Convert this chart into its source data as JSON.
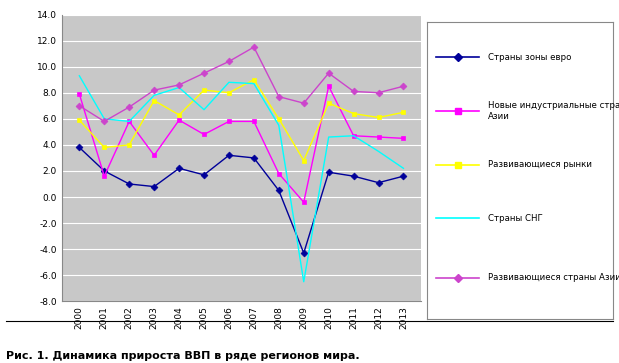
{
  "years": [
    2000,
    2001,
    2002,
    2003,
    2004,
    2005,
    2006,
    2007,
    2008,
    2009,
    2010,
    2011,
    2012,
    2013
  ],
  "series": {
    "Страны зоны евро": [
      3.8,
      2.0,
      1.0,
      0.8,
      2.2,
      1.7,
      3.2,
      3.0,
      0.5,
      -4.3,
      1.9,
      1.6,
      1.1,
      1.6
    ],
    "Новые индустриальные страны Азии": [
      7.9,
      1.6,
      5.8,
      3.2,
      5.9,
      4.8,
      5.8,
      5.8,
      1.8,
      -0.4,
      8.5,
      4.7,
      4.6,
      4.5
    ],
    "Развивающиеся рынки": [
      5.9,
      3.8,
      4.0,
      7.4,
      6.3,
      8.2,
      8.0,
      9.0,
      6.0,
      2.8,
      7.2,
      6.4,
      6.1,
      6.5
    ],
    "Страны СНГ": [
      9.3,
      6.0,
      5.8,
      7.8,
      8.4,
      6.7,
      8.8,
      8.7,
      5.5,
      -6.5,
      4.6,
      4.7,
      3.5,
      2.2
    ],
    "Развивающиеся страны Азии": [
      7.0,
      5.8,
      6.9,
      8.2,
      8.6,
      9.5,
      10.4,
      11.5,
      7.7,
      7.2,
      9.5,
      8.1,
      8.0,
      8.5
    ]
  },
  "colors": {
    "Страны зоны евро": "#000099",
    "Новые индустриальные страны Азии": "#FF00FF",
    "Развивающиеся рынки": "#FFFF00",
    "Страны СНГ": "#00FFFF",
    "Развивающиеся страны Азии": "#CC44CC"
  },
  "markers": {
    "Страны зоны евро": "D",
    "Новые индустриальные страны Азии": "s",
    "Развивающиеся рынки": "s",
    "Страны СНГ": "None",
    "Развивающиеся страны Азии": "D"
  },
  "ylim": [
    -8.0,
    14.0
  ],
  "yticks": [
    -8.0,
    -6.0,
    -4.0,
    -2.0,
    0.0,
    2.0,
    4.0,
    6.0,
    8.0,
    10.0,
    12.0,
    14.0
  ],
  "background_color": "#C8C8C8",
  "caption": "Рис. 1. Динамика прироста ВВП в ряде регионов мира.",
  "legend_display": [
    "Страны зоны евро",
    "Новые индустриальные страны\nАзии",
    "Развивающиеся рынки",
    "Страны СНГ",
    "Развивающиеся страны Азии"
  ],
  "legend_keys": [
    "Страны зоны евро",
    "Новые индустриальные страны Азии",
    "Развивающиеся рынки",
    "Страны СНГ",
    "Развивающиеся страны Азии"
  ]
}
